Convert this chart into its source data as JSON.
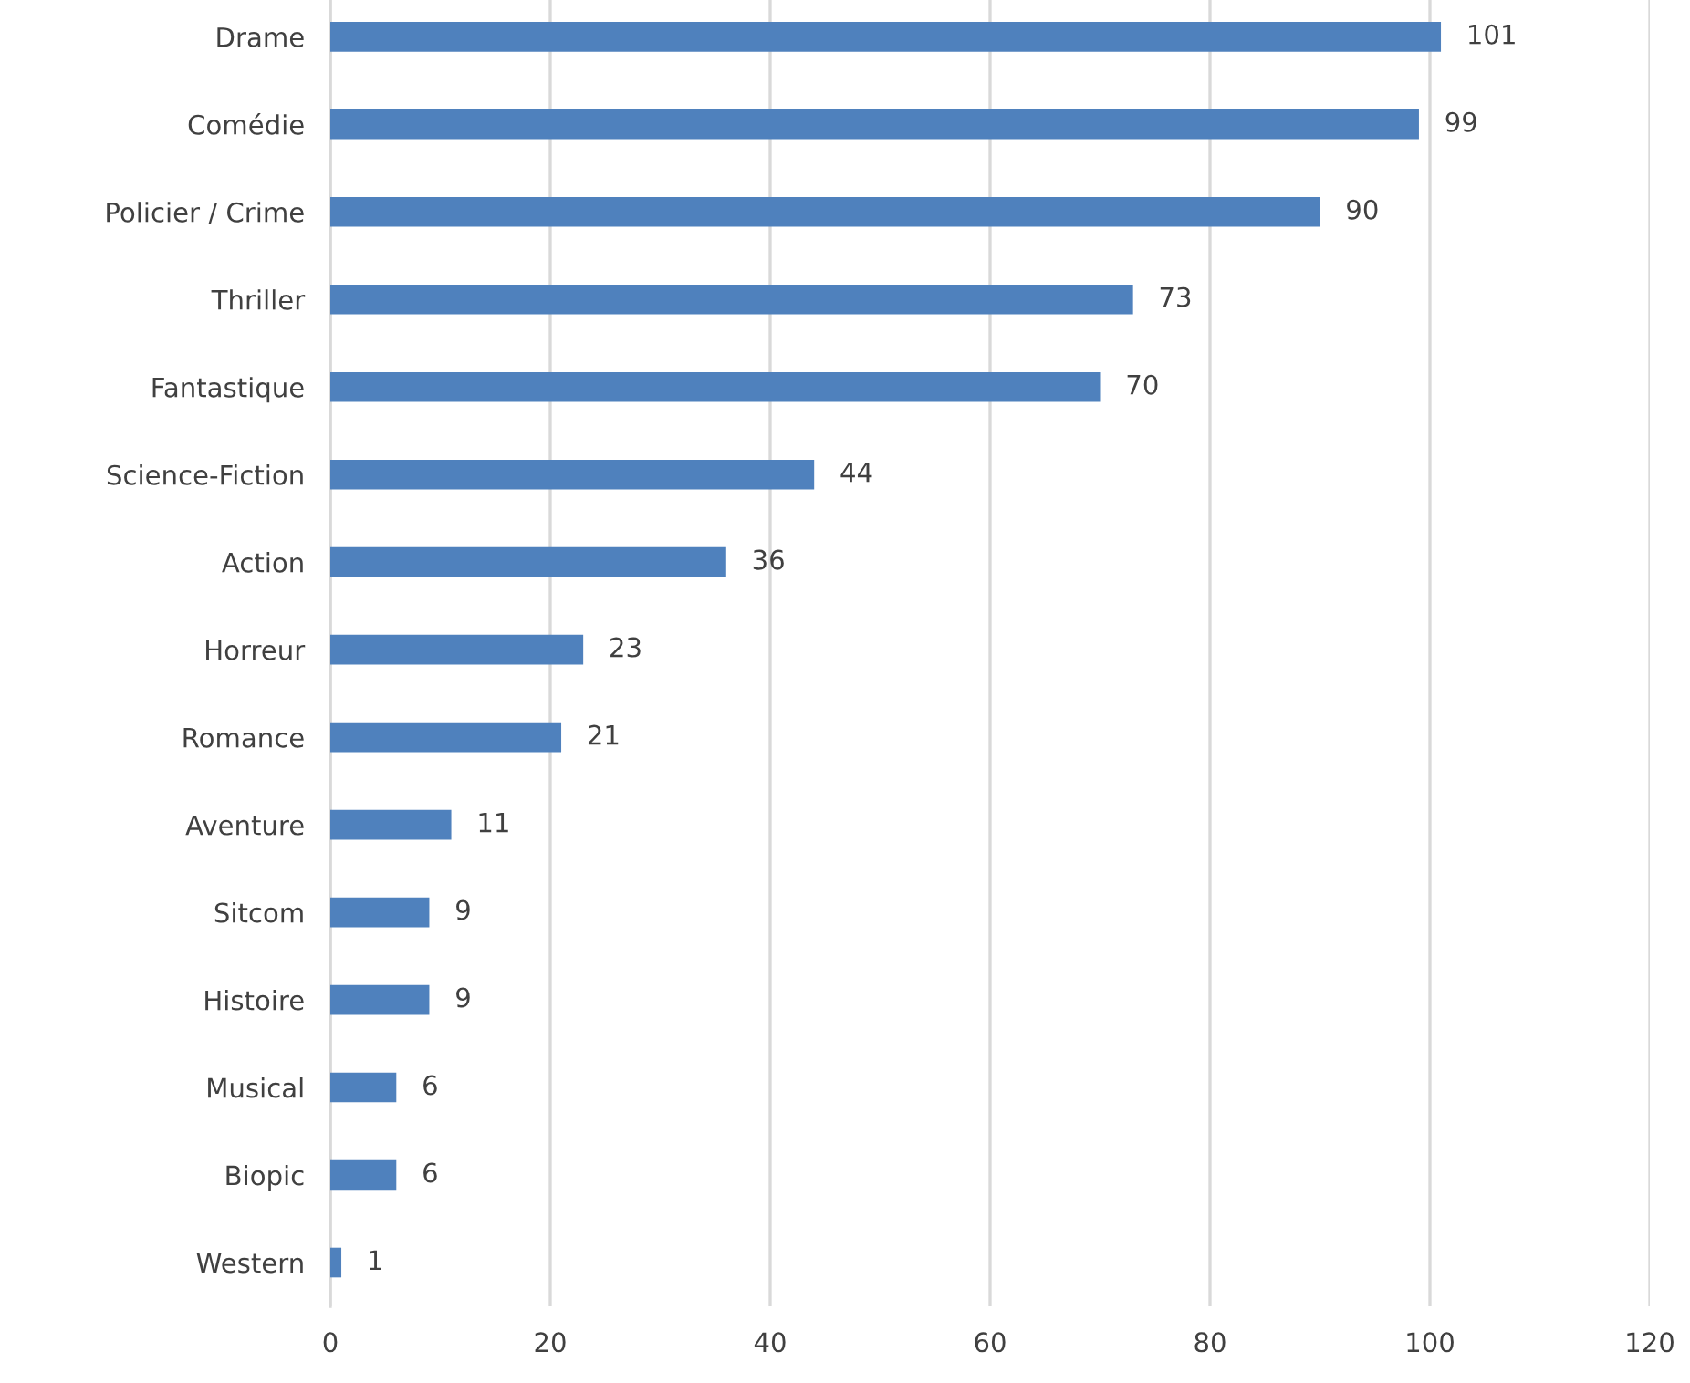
{
  "chart_data": {
    "type": "bar",
    "orientation": "horizontal",
    "categories": [
      "Drame",
      "Comédie",
      "Policier / Crime",
      "Thriller",
      "Fantastique",
      "Science-Fiction",
      "Action",
      "Horreur",
      "Romance",
      "Aventure",
      "Sitcom",
      "Histoire",
      "Musical",
      "Biopic",
      "Western"
    ],
    "values": [
      101,
      99,
      90,
      73,
      70,
      44,
      36,
      23,
      21,
      11,
      9,
      9,
      6,
      6,
      1
    ],
    "color": "#4f81bd",
    "xlim": [
      0,
      120
    ],
    "xticks": [
      0,
      20,
      40,
      60,
      80,
      100,
      120
    ],
    "grid": "x",
    "data_labels": true
  }
}
